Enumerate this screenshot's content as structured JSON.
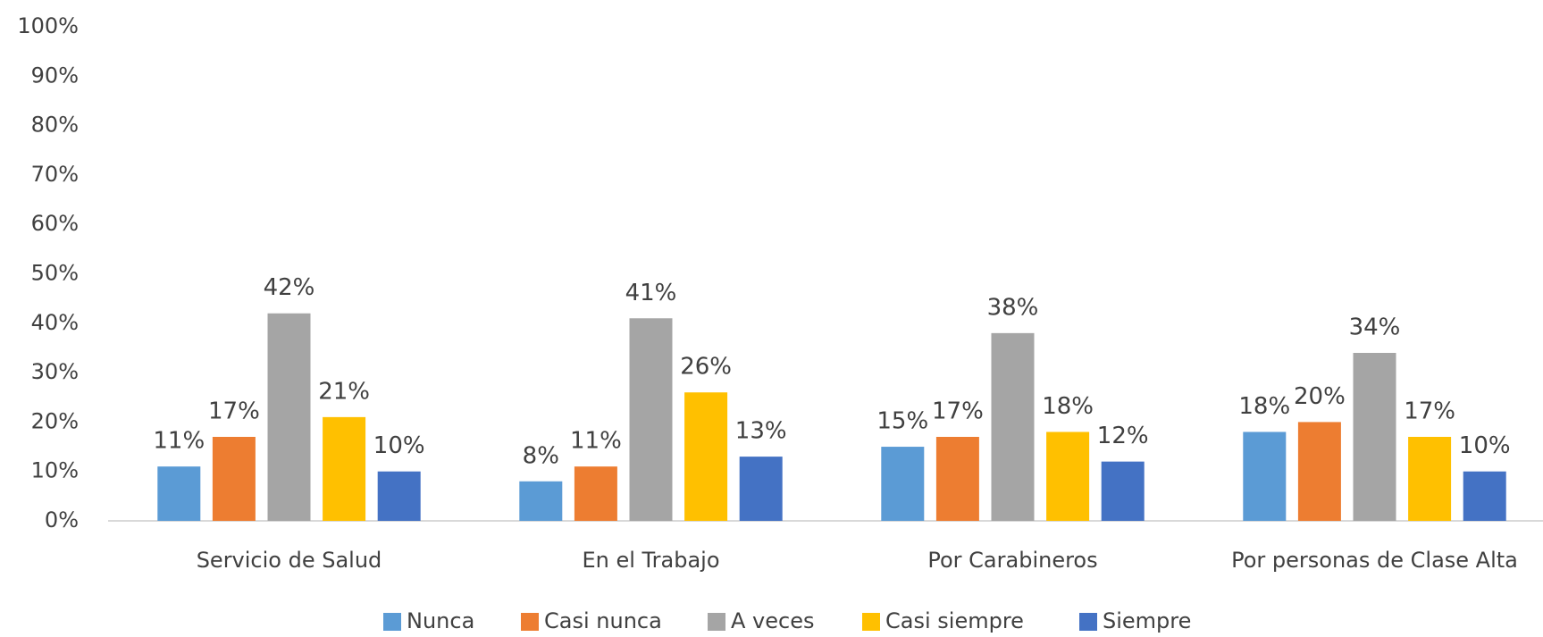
{
  "chart_data": {
    "type": "bar",
    "categories": [
      "Servicio de Salud",
      "En el Trabajo",
      "Por Carabineros",
      "Por personas de Clase Alta"
    ],
    "series": [
      {
        "name": "Nunca",
        "color": "#5b9bd5",
        "values": [
          11,
          8,
          15,
          18
        ],
        "value_labels": [
          "11%",
          "8%",
          "15%",
          "18%"
        ]
      },
      {
        "name": "Casi nunca",
        "color": "#ed7d31",
        "values": [
          17,
          11,
          17,
          20
        ],
        "value_labels": [
          "17%",
          "11%",
          "17%",
          "20%"
        ]
      },
      {
        "name": "A veces",
        "color": "#a5a5a5",
        "values": [
          42,
          41,
          38,
          34
        ],
        "value_labels": [
          "42%",
          "41%",
          "38%",
          "34%"
        ]
      },
      {
        "name": "Casi siempre",
        "color": "#ffc000",
        "values": [
          21,
          26,
          18,
          17
        ],
        "value_labels": [
          "21%",
          "26%",
          "18%",
          "17%"
        ]
      },
      {
        "name": "Siempre",
        "color": "#4472c4",
        "values": [
          10,
          13,
          12,
          10
        ],
        "value_labels": [
          "10%",
          "13%",
          "12%",
          "10%"
        ]
      }
    ],
    "ylim": [
      0,
      100
    ],
    "yticks": [
      {
        "value": 0,
        "label": "0%"
      },
      {
        "value": 10,
        "label": "10%"
      },
      {
        "value": 20,
        "label": "20%"
      },
      {
        "value": 30,
        "label": "30%"
      },
      {
        "value": 40,
        "label": "40%"
      },
      {
        "value": 50,
        "label": "50%"
      },
      {
        "value": 60,
        "label": "60%"
      },
      {
        "value": 70,
        "label": "70%"
      },
      {
        "value": 80,
        "label": "80%"
      },
      {
        "value": 90,
        "label": "90%"
      },
      {
        "value": 100,
        "label": "100%"
      }
    ],
    "grid": false,
    "legend": "bottom"
  }
}
